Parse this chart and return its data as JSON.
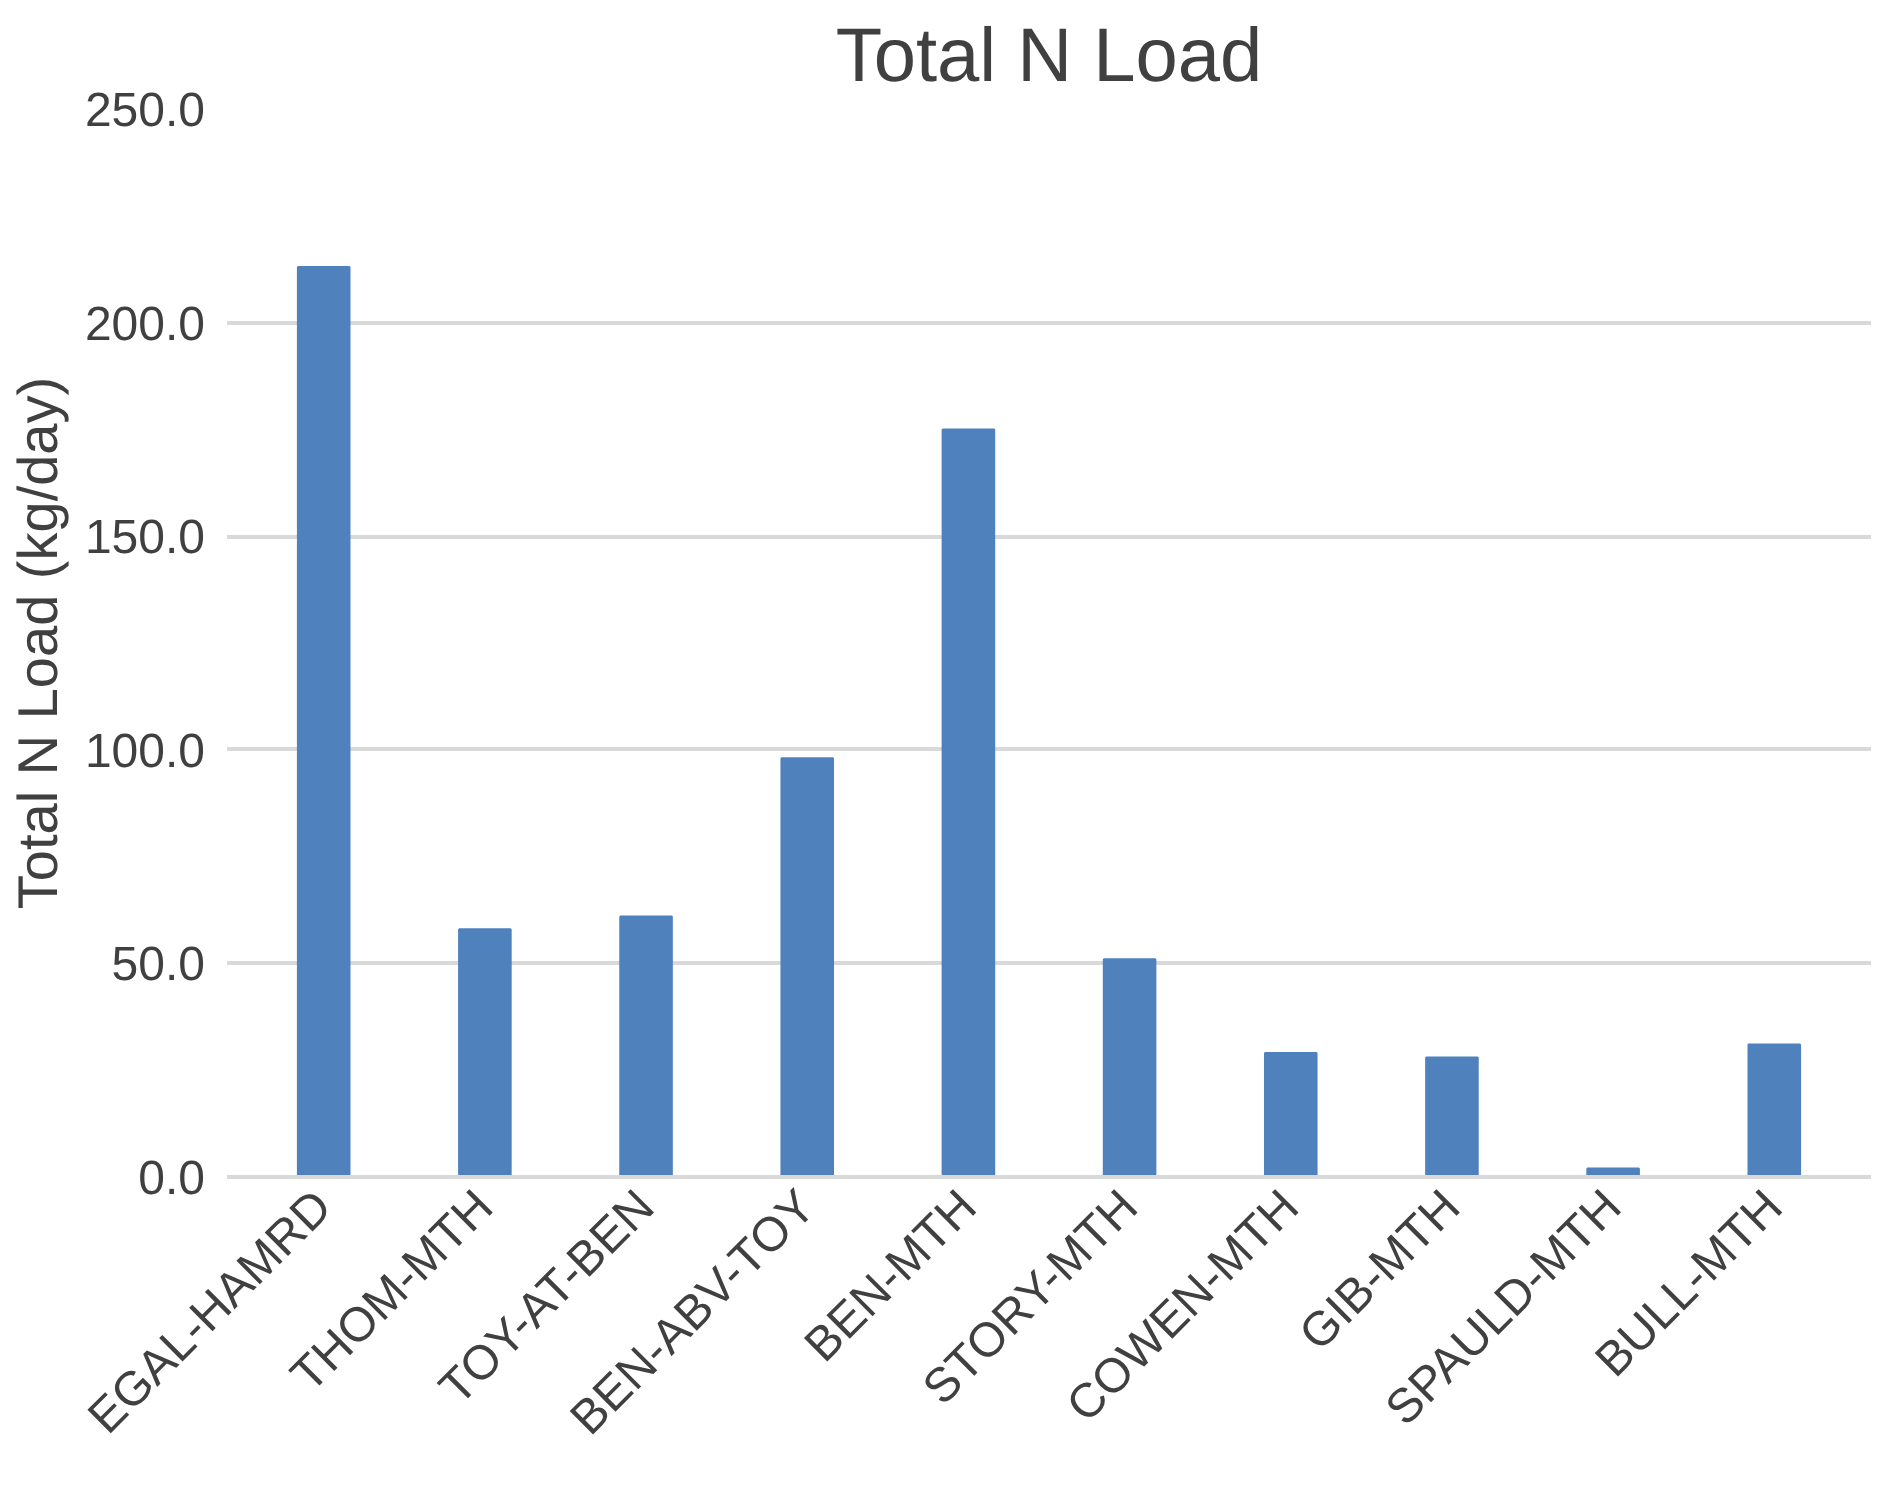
{
  "chart_data": {
    "type": "bar",
    "title": "Total N Load",
    "ylabel": "Total N Load (kg/day)",
    "categories": [
      "EGAL-HAMRD",
      "THOM-MTH",
      "TOY-AT-BEN",
      "BEN-ABV-TOY",
      "BEN-MTH",
      "STORY-MTH",
      "COWEN-MTH",
      "GIB-MTH",
      "SPAULD-MTH",
      "BULL-MTH"
    ],
    "values": [
      213,
      58,
      61,
      98,
      175,
      51,
      29,
      28,
      2,
      31
    ],
    "color": "#4f81bd",
    "ylim": [
      0,
      250
    ],
    "yticks": [
      {
        "value": 0,
        "label": "0.0"
      },
      {
        "value": 50,
        "label": "50.0"
      },
      {
        "value": 100,
        "label": "100.0"
      },
      {
        "value": 150,
        "label": "150.0"
      },
      {
        "value": 200,
        "label": "200.0"
      },
      {
        "value": 250,
        "label": "250.0"
      }
    ],
    "grid": "y"
  }
}
